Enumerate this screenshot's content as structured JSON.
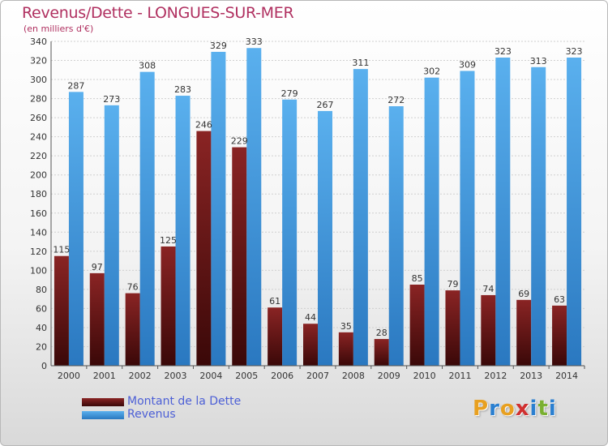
{
  "header": {
    "title": "Revenus/Dette - LONGUES-SUR-MER",
    "subtitle": "(en milliers d'€)"
  },
  "chart_data": {
    "type": "bar",
    "title": "Revenus/Dette - LONGUES-SUR-MER",
    "subtitle": "(en milliers d'€)",
    "xlabel": "",
    "ylabel": "",
    "ylim": [
      0,
      340
    ],
    "ytick_step": 20,
    "grid": true,
    "legend_position": "bottom-left",
    "categories": [
      "2000",
      "2001",
      "2002",
      "2003",
      "2004",
      "2005",
      "2006",
      "2007",
      "2008",
      "2009",
      "2010",
      "2011",
      "2012",
      "2013",
      "2014"
    ],
    "series": [
      {
        "name": "Montant de la Dette",
        "color": "#6b1a1a",
        "values": [
          115,
          97,
          76,
          125,
          246,
          229,
          61,
          44,
          35,
          28,
          85,
          79,
          74,
          69,
          63
        ]
      },
      {
        "name": "Revenus",
        "color": "#4ea3e2",
        "values": [
          287,
          273,
          308,
          283,
          329,
          333,
          279,
          267,
          311,
          272,
          302,
          309,
          323,
          313,
          323
        ]
      }
    ]
  },
  "legend": {
    "items": [
      {
        "label": "Montant de la Dette",
        "color": "#6b1a1a"
      },
      {
        "label": "Revenus",
        "color": "#4ea3e2"
      }
    ]
  },
  "logo": {
    "text": "Proxiti",
    "letter_colors": [
      "#e8a020",
      "#2a7fd0",
      "#e8a020",
      "#d03030",
      "#2a7fd0",
      "#7ab030",
      "#2a7fd0"
    ]
  }
}
